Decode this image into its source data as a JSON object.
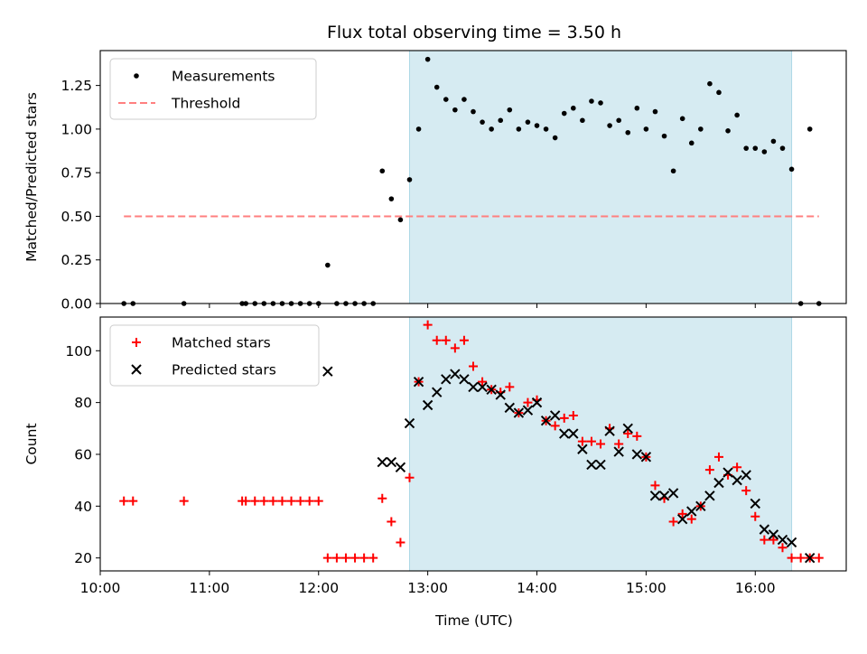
{
  "chart_data": [
    {
      "type": "scatter",
      "title": "Flux total observing time = 3.50 h",
      "ylabel": "Matched/Predicted stars",
      "xlabel": "",
      "xlim": [
        "10:00",
        "16:50"
      ],
      "ylim": [
        0,
        1.45
      ],
      "grid": false,
      "legend_placement": "top-left",
      "yticks": [
        "0.00",
        "0.25",
        "0.50",
        "0.75",
        "1.00",
        "1.25"
      ],
      "shaded_interval": {
        "start": "12:50",
        "end": "16:20",
        "color": "#add8e6"
      },
      "series": [
        {
          "name": "Measurements",
          "color": "#000000",
          "marker": "dot",
          "points": [
            [
              "10:13",
              0
            ],
            [
              "10:18",
              0
            ],
            [
              "10:46",
              0
            ],
            [
              "11:18",
              0
            ],
            [
              "11:20",
              0
            ],
            [
              "11:25",
              0
            ],
            [
              "11:30",
              0
            ],
            [
              "11:35",
              0
            ],
            [
              "11:40",
              0
            ],
            [
              "11:45",
              0
            ],
            [
              "11:50",
              0
            ],
            [
              "11:55",
              0
            ],
            [
              "12:00",
              0
            ],
            [
              "12:05",
              0.22
            ],
            [
              "12:10",
              0
            ],
            [
              "12:15",
              0
            ],
            [
              "12:20",
              0
            ],
            [
              "12:25",
              0
            ],
            [
              "12:30",
              0
            ],
            [
              "12:35",
              0.76
            ],
            [
              "12:40",
              0.6
            ],
            [
              "12:45",
              0.48
            ],
            [
              "12:50",
              0.71
            ],
            [
              "12:55",
              1.0
            ],
            [
              "13:00",
              1.4
            ],
            [
              "13:05",
              1.24
            ],
            [
              "13:10",
              1.17
            ],
            [
              "13:15",
              1.11
            ],
            [
              "13:20",
              1.17
            ],
            [
              "13:25",
              1.1
            ],
            [
              "13:30",
              1.04
            ],
            [
              "13:35",
              1.0
            ],
            [
              "13:40",
              1.05
            ],
            [
              "13:45",
              1.11
            ],
            [
              "13:50",
              1.0
            ],
            [
              "13:55",
              1.04
            ],
            [
              "14:00",
              1.02
            ],
            [
              "14:05",
              1.0
            ],
            [
              "14:10",
              0.95
            ],
            [
              "14:15",
              1.09
            ],
            [
              "14:20",
              1.12
            ],
            [
              "14:25",
              1.05
            ],
            [
              "14:30",
              1.16
            ],
            [
              "14:35",
              1.15
            ],
            [
              "14:40",
              1.02
            ],
            [
              "14:45",
              1.05
            ],
            [
              "14:50",
              0.98
            ],
            [
              "14:55",
              1.12
            ],
            [
              "15:00",
              1.0
            ],
            [
              "15:05",
              1.1
            ],
            [
              "15:10",
              0.96
            ],
            [
              "15:15",
              0.76
            ],
            [
              "15:20",
              1.06
            ],
            [
              "15:25",
              0.92
            ],
            [
              "15:30",
              1.0
            ],
            [
              "15:35",
              1.26
            ],
            [
              "15:40",
              1.21
            ],
            [
              "15:45",
              0.99
            ],
            [
              "15:50",
              1.08
            ],
            [
              "15:55",
              0.89
            ],
            [
              "16:00",
              0.89
            ],
            [
              "16:05",
              0.87
            ],
            [
              "16:10",
              0.93
            ],
            [
              "16:15",
              0.89
            ],
            [
              "16:20",
              0.77
            ],
            [
              "16:25",
              0
            ],
            [
              "16:30",
              1.0
            ],
            [
              "16:35",
              0
            ]
          ]
        },
        {
          "name": "Threshold",
          "color": "#ff7f7f",
          "style": "dashed",
          "points": [
            [
              "10:13",
              0.5
            ],
            [
              "16:35",
              0.5
            ]
          ]
        }
      ]
    },
    {
      "type": "scatter",
      "title": "",
      "ylabel": "Count",
      "xlabel": "Time (UTC)",
      "xlim": [
        "10:00",
        "16:50"
      ],
      "ylim": [
        15,
        113
      ],
      "grid": false,
      "legend_placement": "top-left",
      "yticks": [
        "20",
        "40",
        "60",
        "80",
        "100"
      ],
      "xticks": [
        "10:00",
        "11:00",
        "12:00",
        "13:00",
        "14:00",
        "15:00",
        "16:00"
      ],
      "shaded_interval": {
        "start": "12:50",
        "end": "16:20",
        "color": "#add8e6"
      },
      "series": [
        {
          "name": "Matched stars",
          "color": "#ff0000",
          "marker": "plus",
          "points": [
            [
              "10:13",
              42
            ],
            [
              "10:18",
              42
            ],
            [
              "10:46",
              42
            ],
            [
              "11:18",
              42
            ],
            [
              "11:20",
              42
            ],
            [
              "11:25",
              42
            ],
            [
              "11:30",
              42
            ],
            [
              "11:35",
              42
            ],
            [
              "11:40",
              42
            ],
            [
              "11:45",
              42
            ],
            [
              "11:50",
              42
            ],
            [
              "11:55",
              42
            ],
            [
              "12:00",
              42
            ],
            [
              "12:05",
              20
            ],
            [
              "12:10",
              20
            ],
            [
              "12:15",
              20
            ],
            [
              "12:20",
              20
            ],
            [
              "12:25",
              20
            ],
            [
              "12:30",
              20
            ],
            [
              "12:35",
              43
            ],
            [
              "12:40",
              34
            ],
            [
              "12:45",
              26
            ],
            [
              "12:50",
              51
            ],
            [
              "12:55",
              88
            ],
            [
              "13:00",
              110
            ],
            [
              "13:05",
              104
            ],
            [
              "13:10",
              104
            ],
            [
              "13:15",
              101
            ],
            [
              "13:20",
              104
            ],
            [
              "13:25",
              94
            ],
            [
              "13:30",
              88
            ],
            [
              "13:35",
              85
            ],
            [
              "13:40",
              84
            ],
            [
              "13:45",
              86
            ],
            [
              "13:50",
              76
            ],
            [
              "13:55",
              80
            ],
            [
              "14:00",
              81
            ],
            [
              "14:05",
              73
            ],
            [
              "14:10",
              71
            ],
            [
              "14:15",
              74
            ],
            [
              "14:20",
              75
            ],
            [
              "14:25",
              65
            ],
            [
              "14:30",
              65
            ],
            [
              "14:35",
              64
            ],
            [
              "14:40",
              70
            ],
            [
              "14:45",
              64
            ],
            [
              "14:50",
              68
            ],
            [
              "14:55",
              67
            ],
            [
              "15:00",
              59
            ],
            [
              "15:05",
              48
            ],
            [
              "15:10",
              43
            ],
            [
              "15:15",
              34
            ],
            [
              "15:20",
              37
            ],
            [
              "15:25",
              35
            ],
            [
              "15:30",
              40
            ],
            [
              "15:35",
              54
            ],
            [
              "15:40",
              59
            ],
            [
              "15:45",
              52
            ],
            [
              "15:50",
              55
            ],
            [
              "15:55",
              46
            ],
            [
              "16:00",
              36
            ],
            [
              "16:05",
              27
            ],
            [
              "16:10",
              27
            ],
            [
              "16:15",
              24
            ],
            [
              "16:20",
              20
            ],
            [
              "16:25",
              20
            ],
            [
              "16:30",
              20
            ],
            [
              "16:35",
              20
            ]
          ]
        },
        {
          "name": "Predicted stars",
          "color": "#000000",
          "marker": "x",
          "points": [
            [
              "12:05",
              92
            ],
            [
              "12:35",
              57
            ],
            [
              "12:40",
              57
            ],
            [
              "12:45",
              55
            ],
            [
              "12:50",
              72
            ],
            [
              "12:55",
              88
            ],
            [
              "13:00",
              79
            ],
            [
              "13:05",
              84
            ],
            [
              "13:10",
              89
            ],
            [
              "13:15",
              91
            ],
            [
              "13:20",
              89
            ],
            [
              "13:25",
              86
            ],
            [
              "13:30",
              86
            ],
            [
              "13:35",
              85
            ],
            [
              "13:40",
              83
            ],
            [
              "13:45",
              78
            ],
            [
              "13:50",
              76
            ],
            [
              "13:55",
              77
            ],
            [
              "14:00",
              80
            ],
            [
              "14:05",
              73
            ],
            [
              "14:10",
              75
            ],
            [
              "14:15",
              68
            ],
            [
              "14:20",
              68
            ],
            [
              "14:25",
              62
            ],
            [
              "14:30",
              56
            ],
            [
              "14:35",
              56
            ],
            [
              "14:40",
              69
            ],
            [
              "14:45",
              61
            ],
            [
              "14:50",
              70
            ],
            [
              "14:55",
              60
            ],
            [
              "15:00",
              59
            ],
            [
              "15:05",
              44
            ],
            [
              "15:10",
              44
            ],
            [
              "15:15",
              45
            ],
            [
              "15:20",
              35
            ],
            [
              "15:25",
              38
            ],
            [
              "15:30",
              40
            ],
            [
              "15:35",
              44
            ],
            [
              "15:40",
              49
            ],
            [
              "15:45",
              53
            ],
            [
              "15:50",
              50
            ],
            [
              "15:55",
              52
            ],
            [
              "16:00",
              41
            ],
            [
              "16:05",
              31
            ],
            [
              "16:10",
              29
            ],
            [
              "16:15",
              27
            ],
            [
              "16:20",
              26
            ],
            [
              "16:30",
              20
            ]
          ]
        }
      ]
    }
  ]
}
